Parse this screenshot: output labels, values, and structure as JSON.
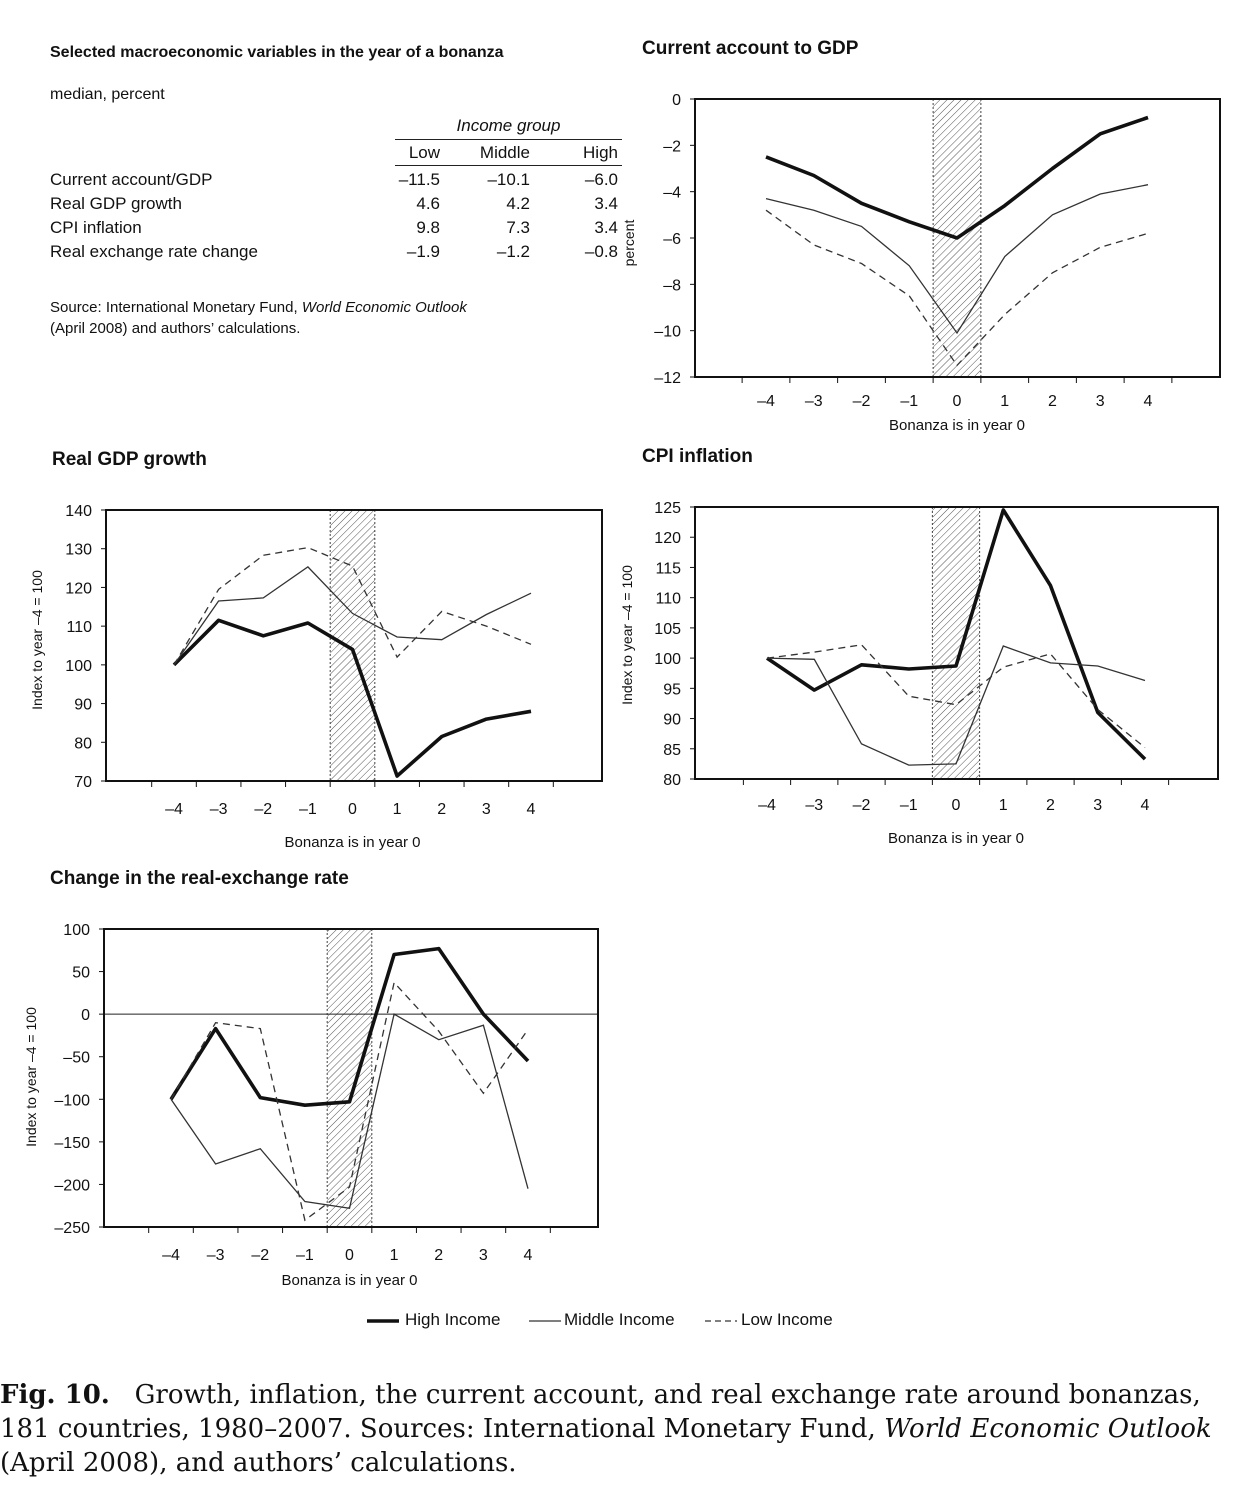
{
  "table": {
    "title": "Selected macroeconomic variables in the year of a bonanza",
    "subtitle": "median, percent",
    "group_header": "Income group",
    "columns": [
      "Low",
      "Middle",
      "High"
    ],
    "rows": [
      {
        "label": "Current account/GDP",
        "values": [
          "–11.5",
          "–10.1",
          "–6.0"
        ]
      },
      {
        "label": "Real GDP growth",
        "values": [
          "4.6",
          "4.2",
          "3.4"
        ]
      },
      {
        "label": "CPI inflation",
        "values": [
          "9.8",
          "7.3",
          "3.4"
        ]
      },
      {
        "label": "Real exchange rate change",
        "values": [
          "–1.9",
          "–1.2",
          "–0.8"
        ]
      }
    ],
    "source_prefix": "Source: International Monetary Fund, ",
    "source_italic": "World Economic Outlook",
    "source_suffix": "(April 2008) and authors’ calculations."
  },
  "legend": {
    "high": "High Income",
    "middle": "Middle Income",
    "low": "Low Income"
  },
  "caption": {
    "label": "Fig. 10.",
    "line1": "Growth, inflation, the current account, and real exchange rate around bonanzas,",
    "line2_prefix": "181 countries, 1980–2007. Sources: International Monetary Fund, ",
    "line2_italic": "World Economic Outlook",
    "line3": "(April 2008), and authors’ calculations."
  },
  "chart_data": [
    {
      "id": "ca",
      "type": "line",
      "title": "Current account to GDP",
      "xlabel": "Bonanza is in year 0",
      "ylabel": "percent",
      "x": [
        -4,
        -3,
        -2,
        -1,
        0,
        1,
        2,
        3,
        4
      ],
      "x_ticks": [
        "–4",
        "–3",
        "–2",
        "–1",
        "0",
        "1",
        "2",
        "3",
        "4"
      ],
      "ylim": [
        -12,
        0
      ],
      "y_ticks": [
        0,
        -2,
        -4,
        -6,
        -8,
        -10,
        -12
      ],
      "y_tick_labels": [
        "0",
        "–2",
        "–4",
        "–6",
        "–8",
        "–10",
        "–12"
      ],
      "shaded_x": [
        -0.5,
        0.5
      ],
      "series": [
        {
          "name": "High Income",
          "values": [
            -2.5,
            -3.3,
            -4.5,
            -5.3,
            -6.0,
            -4.6,
            -3.0,
            -1.5,
            -0.8
          ]
        },
        {
          "name": "Middle Income",
          "values": [
            -4.3,
            -4.8,
            -5.5,
            -7.2,
            -10.1,
            -6.8,
            -5.0,
            -4.1,
            -3.7
          ]
        },
        {
          "name": "Low Income",
          "values": [
            -4.8,
            -6.3,
            -7.1,
            -8.5,
            -11.5,
            -9.3,
            -7.5,
            -6.4,
            -5.8
          ]
        }
      ]
    },
    {
      "id": "gdp",
      "type": "line",
      "title": "Real GDP growth",
      "xlabel": "Bonanza is in year 0",
      "ylabel": "Index to year –4 = 100",
      "x": [
        -4,
        -3,
        -2,
        -1,
        0,
        1,
        2,
        3,
        4
      ],
      "x_ticks": [
        "–4",
        "–3",
        "–2",
        "–1",
        "0",
        "1",
        "2",
        "3",
        "4"
      ],
      "ylim": [
        70,
        140
      ],
      "y_ticks": [
        140,
        130,
        120,
        110,
        100,
        90,
        80,
        70
      ],
      "y_tick_labels": [
        "140",
        "130",
        "120",
        "110",
        "100",
        "90",
        "80",
        "70"
      ],
      "shaded_x": [
        -0.5,
        0.5
      ],
      "series": [
        {
          "name": "High Income",
          "values": [
            100,
            111.5,
            107.5,
            110.8,
            104,
            71.3,
            81.5,
            86,
            88
          ]
        },
        {
          "name": "Middle Income",
          "values": [
            100,
            116.5,
            117.3,
            125.3,
            113.3,
            107.2,
            106.5,
            113,
            118.5
          ]
        },
        {
          "name": "Low Income",
          "values": [
            100,
            119.5,
            128.3,
            130.3,
            125.5,
            102,
            113.8,
            110,
            105.3
          ]
        }
      ]
    },
    {
      "id": "cpi",
      "type": "line",
      "title": "CPI inflation",
      "xlabel": "Bonanza is in year 0",
      "ylabel": "Index to year –4 = 100",
      "x": [
        -4,
        -3,
        -2,
        -1,
        0,
        1,
        2,
        3,
        4
      ],
      "x_ticks": [
        "–4",
        "–3",
        "–2",
        "–1",
        "0",
        "1",
        "2",
        "3",
        "4"
      ],
      "ylim": [
        80,
        125
      ],
      "y_ticks": [
        125,
        120,
        115,
        110,
        105,
        100,
        95,
        90,
        85,
        80
      ],
      "y_tick_labels": [
        "125",
        "120",
        "115",
        "110",
        "105",
        "100",
        "95",
        "90",
        "85",
        "80"
      ],
      "shaded_x": [
        -0.5,
        0.5
      ],
      "series": [
        {
          "name": "High Income",
          "values": [
            100,
            94.7,
            98.9,
            98.2,
            98.7,
            124.5,
            112,
            91,
            83.3
          ]
        },
        {
          "name": "Middle Income",
          "values": [
            100,
            99.8,
            85.8,
            82.3,
            82.5,
            102,
            99.2,
            98.7,
            96.3
          ]
        },
        {
          "name": "Low Income",
          "values": [
            100,
            101,
            102.2,
            93.7,
            92.3,
            98.5,
            100.7,
            91.5,
            85.2
          ]
        }
      ]
    },
    {
      "id": "rer",
      "type": "line",
      "title": "Change in the real-exchange rate",
      "xlabel": "Bonanza is in year 0",
      "ylabel": "Index to year –4 = 100",
      "x": [
        -4,
        -3,
        -2,
        -1,
        0,
        1,
        2,
        3,
        4
      ],
      "x_ticks": [
        "–4",
        "–3",
        "–2",
        "–1",
        "0",
        "1",
        "2",
        "3",
        "4"
      ],
      "ylim": [
        -250,
        100
      ],
      "y_ticks": [
        100,
        50,
        0,
        -50,
        -100,
        -150,
        -200,
        -250
      ],
      "y_tick_labels": [
        "100",
        "50",
        "0",
        "–50",
        "–100",
        "–150",
        "–200",
        "–250"
      ],
      "zero_line": true,
      "shaded_x": [
        -0.5,
        0.5
      ],
      "series": [
        {
          "name": "High Income",
          "values": [
            -100,
            -17,
            -98,
            -107,
            -103,
            70,
            77,
            0,
            -55
          ]
        },
        {
          "name": "Middle Income",
          "values": [
            -100,
            -176,
            -158,
            -220,
            -228,
            0,
            -30,
            -13,
            -205
          ]
        },
        {
          "name": "Low Income",
          "values": [
            -100,
            -10,
            -17,
            -242,
            -203,
            37,
            -20,
            -93,
            -18
          ]
        }
      ]
    }
  ]
}
